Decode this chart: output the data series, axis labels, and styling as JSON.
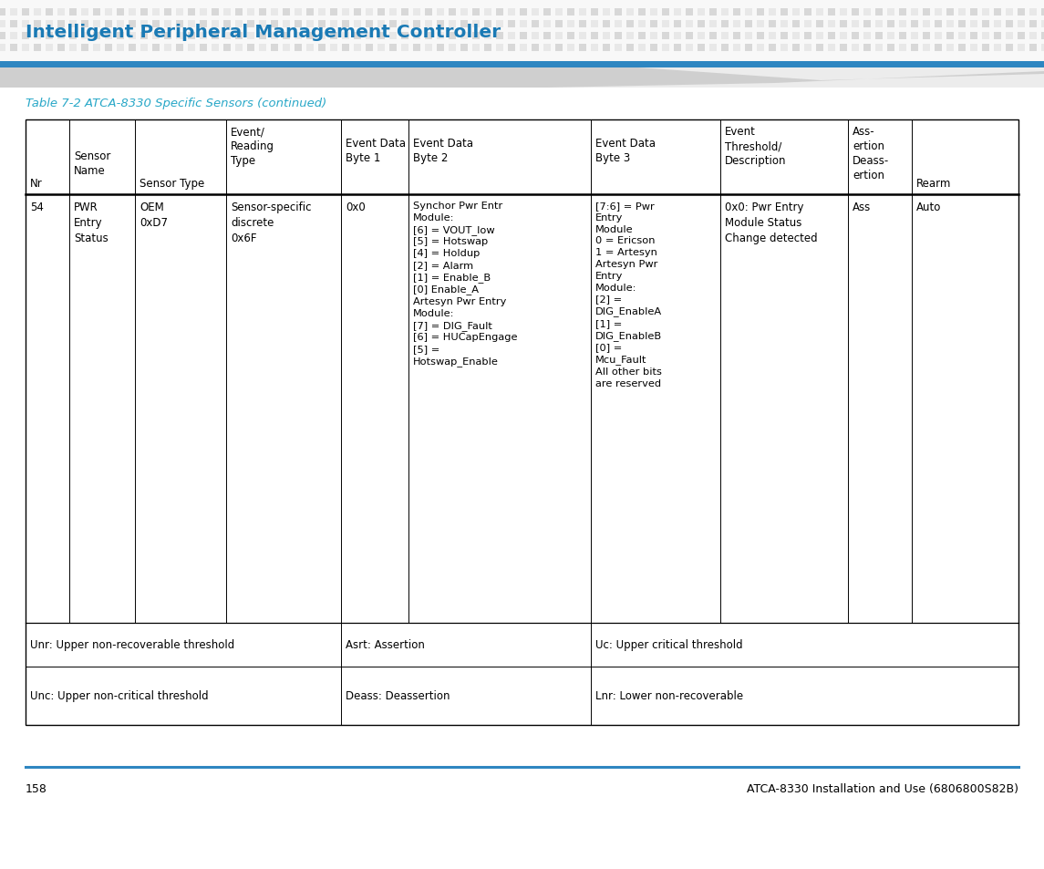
{
  "title": "Intelligent Peripheral Management Controller",
  "title_color": "#1a7ab5",
  "table_caption": "Table 7-2 ATCA-8330 Specific Sensors (continued)",
  "table_caption_color": "#29a8c8",
  "header_row_texts": [
    "Nr",
    "Sensor\nName",
    "Sensor Type",
    "Event/\nReading\nType",
    "Event Data\nByte 1",
    "Event Data\nByte 2",
    "Event Data\nByte 3",
    "Event\nThreshold/\nDescription",
    "Ass-\nertion\nDeass-\nertion",
    "Rearm"
  ],
  "nr": "54",
  "sensor_name": "PWR\nEntry\nStatus",
  "sensor_type": "OEM\n0xD7",
  "event_reading_type": "Sensor-specific\ndiscrete\n0x6F",
  "event_data_byte1": "0x0",
  "event_data_byte2": "Synchor Pwr Entr\nModule:\n[6] = VOUT_low\n[5] = Hotswap\n[4] = Holdup\n[2] = Alarm\n[1] = Enable_B\n[0] Enable_A\nArtesyn Pwr Entry\nModule:\n[7] = DIG_Fault\n[6] = HUCapEngage\n[5] =\nHotswap_Enable",
  "event_data_byte3": "[7:6] = Pwr\nEntry\nModule\n0 = Ericson\n1 = Artesyn\nArtesyn Pwr\nEntry\nModule:\n[2] =\nDIG_EnableA\n[1] =\nDIG_EnableB\n[0] =\nMcu_Fault\nAll other bits\nare reserved",
  "event_threshold": "0x0: Pwr Entry\nModule Status\nChange detected",
  "assertion": "Ass",
  "rearm": "Auto",
  "footer_row1_col1": "Unr: Upper non-recoverable threshold",
  "footer_row1_col2": "Asrt: Assertion",
  "footer_row1_col3": "Uc: Upper critical threshold",
  "footer_row2_col1": "Unc: Upper non-critical threshold",
  "footer_row2_col2": "Deass: Deassertion",
  "footer_row2_col3": "Lnr: Lower non-recoverable",
  "page_number": "158",
  "page_footer_right": "ATCA-8330 Installation and Use (6806800S82B)",
  "header_bar_color": "#2e86c1",
  "bg_color": "#ffffff",
  "dot_color1": "#d8d8d8",
  "dot_color2": "#e8e8e8"
}
